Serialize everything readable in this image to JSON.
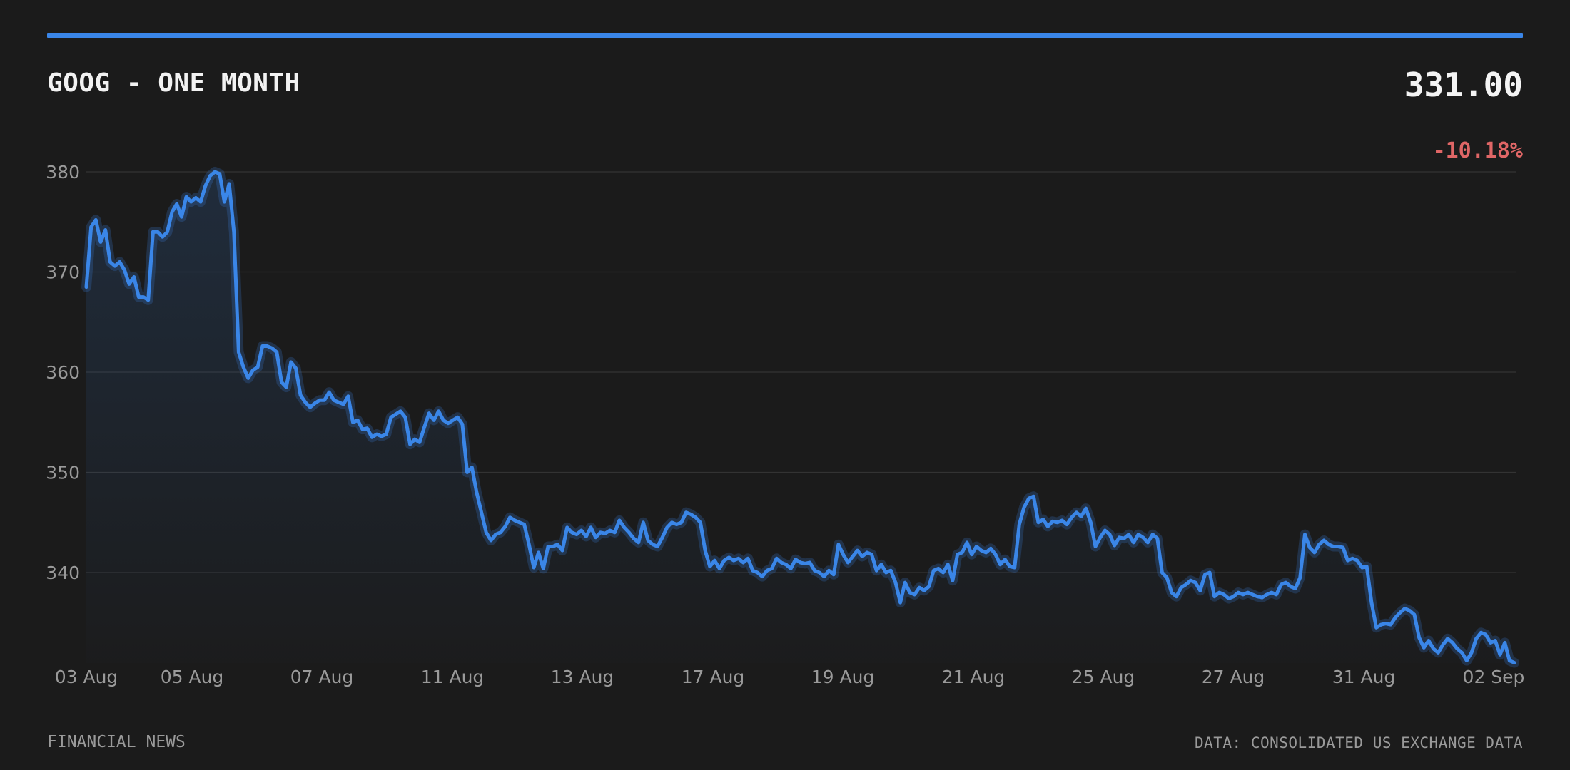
{
  "header": {
    "title": "GOOG - ONE MONTH",
    "price": "331.00",
    "change": "-10.18%"
  },
  "footer": {
    "source_left": "FINANCIAL NEWS",
    "source_right": "DATA: CONSOLIDATED US EXCHANGE DATA"
  },
  "colors": {
    "background": "#1b1b1b",
    "accent": "#3a86e8",
    "negative": "#e06666",
    "grid": "#333333",
    "tick_text": "#9a9a9a"
  },
  "chart_data": {
    "type": "line",
    "title": "GOOG - ONE MONTH",
    "xlabel": "",
    "ylabel": "",
    "ylim": [
      331,
      380
    ],
    "yticks": [
      340,
      350,
      360,
      370,
      380
    ],
    "grid": true,
    "legend": "none",
    "x_tick_labels": [
      "03 Aug",
      "05 Aug",
      "07 Aug",
      "11 Aug",
      "13 Aug",
      "17 Aug",
      "19 Aug",
      "21 Aug",
      "25 Aug",
      "27 Aug",
      "31 Aug",
      "02 Sep"
    ],
    "series": [
      {
        "values": [
          368.5,
          374.5,
          375.2,
          373.0,
          374.2,
          371.0,
          370.6,
          371.0,
          370.2,
          368.8,
          369.5,
          367.5,
          367.5,
          367.2,
          374.0,
          374.0,
          373.5,
          374.0,
          376.0,
          376.8,
          375.5,
          377.5,
          377.0,
          377.4,
          377.0,
          378.6,
          379.6,
          380.0,
          379.8,
          377.0,
          378.8,
          374.0,
          362.0,
          360.5,
          359.4,
          360.2,
          360.5,
          362.6,
          362.6,
          362.4,
          362.0,
          359.0,
          358.5,
          361.0,
          360.4,
          357.7,
          357.0,
          356.5,
          356.9,
          357.2,
          357.2,
          358.0,
          357.2,
          357.0,
          356.8,
          357.6,
          355.0,
          355.2,
          354.3,
          354.4,
          353.5,
          353.8,
          353.6,
          353.8,
          355.5,
          355.8,
          356.1,
          355.5,
          352.8,
          353.3,
          353.0,
          354.5,
          355.9,
          355.2,
          356.1,
          355.2,
          354.9,
          355.2,
          355.5,
          354.8,
          350.0,
          350.5,
          348.0,
          346.0,
          344.0,
          343.2,
          343.8,
          344.0,
          344.6,
          345.5,
          345.2,
          345.0,
          344.8,
          342.8,
          340.5,
          342.0,
          340.4,
          342.6,
          342.6,
          342.8,
          342.2,
          344.5,
          344.0,
          343.8,
          344.2,
          343.6,
          344.5,
          343.5,
          344.0,
          343.9,
          344.2,
          344.0,
          345.2,
          344.5,
          344.0,
          343.4,
          343.0,
          345.0,
          343.2,
          342.8,
          342.6,
          343.5,
          344.5,
          345.0,
          344.8,
          345.0,
          346.0,
          345.8,
          345.5,
          345.0,
          342.2,
          340.6,
          341.2,
          340.4,
          341.2,
          341.5,
          341.2,
          341.4,
          341.0,
          341.4,
          340.2,
          340.0,
          339.6,
          340.2,
          340.4,
          341.4,
          341.0,
          340.8,
          340.4,
          341.3,
          341.0,
          340.9,
          341.0,
          340.2,
          340.0,
          339.6,
          340.2,
          339.8,
          342.8,
          341.8,
          341.0,
          341.6,
          342.2,
          341.6,
          342.0,
          341.8,
          340.2,
          340.8,
          340.0,
          340.2,
          339.0,
          337.0,
          339.0,
          338.0,
          337.8,
          338.5,
          338.2,
          338.6,
          340.2,
          340.4,
          340.0,
          340.8,
          339.2,
          341.8,
          342.0,
          343.0,
          341.8,
          342.6,
          342.2,
          342.0,
          342.4,
          341.8,
          340.8,
          341.3,
          340.6,
          340.5,
          344.8,
          346.5,
          347.4,
          347.6,
          345.0,
          345.3,
          344.6,
          345.1,
          345.0,
          345.2,
          344.8,
          345.5,
          346.0,
          345.6,
          346.4,
          345.0,
          342.6,
          343.5,
          344.2,
          343.8,
          342.7,
          343.5,
          343.4,
          343.8,
          343.0,
          343.8,
          343.5,
          343.0,
          343.8,
          343.4,
          340.0,
          339.5,
          338.0,
          337.6,
          338.5,
          338.8,
          339.2,
          339.0,
          338.2,
          339.8,
          340.0,
          337.6,
          338.0,
          337.8,
          337.4,
          337.6,
          338.0,
          337.8,
          338.0,
          337.8,
          337.6,
          337.5,
          337.8,
          338.0,
          337.8,
          338.8,
          339.0,
          338.6,
          338.4,
          339.5,
          343.8,
          342.5,
          342.0,
          342.8,
          343.2,
          342.8,
          342.6,
          342.6,
          342.5,
          341.2,
          341.4,
          341.2,
          340.5,
          340.6,
          337.0,
          334.5,
          334.8,
          334.9,
          334.8,
          335.5,
          336.0,
          336.4,
          336.2,
          335.8,
          333.5,
          332.5,
          333.2,
          332.4,
          332.0,
          332.8,
          333.4,
          333.0,
          332.4,
          332.0,
          331.2,
          332.0,
          333.4,
          334.0,
          333.8,
          333.0,
          333.2,
          331.8,
          333.0,
          331.2,
          331.0
        ]
      }
    ]
  }
}
